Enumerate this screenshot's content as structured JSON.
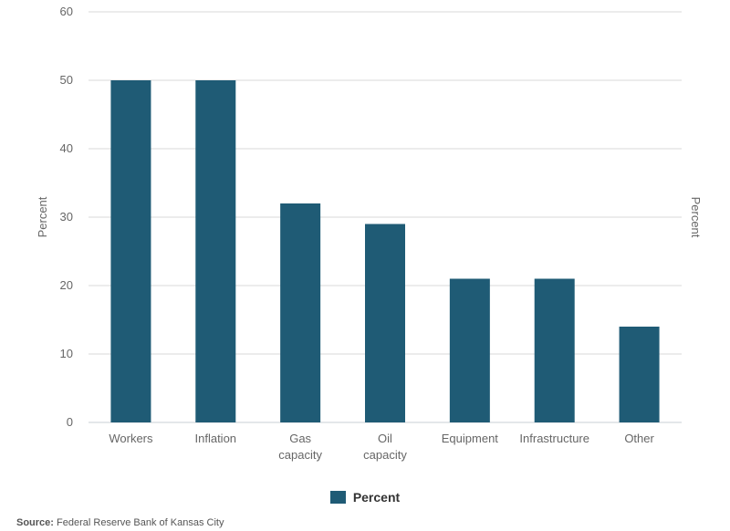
{
  "chart_data": {
    "type": "bar",
    "categories": [
      [
        "Workers"
      ],
      [
        "Inflation"
      ],
      [
        "Gas",
        "capacity"
      ],
      [
        "Oil",
        "capacity"
      ],
      [
        "Equipment"
      ],
      [
        "Infrastructure"
      ],
      [
        "Other"
      ]
    ],
    "series": [
      {
        "name": "Percent",
        "values": [
          50,
          50,
          32,
          29,
          21,
          21,
          14
        ]
      }
    ],
    "ylim": [
      0,
      60
    ],
    "yticks": [
      0,
      10,
      20,
      30,
      40,
      50,
      60
    ],
    "ylabel": "Percent",
    "ylabel_right": "Percent",
    "grid": true,
    "legend_position": "bottom-center",
    "bar_color": "#1f5b75"
  },
  "source": {
    "label": "Source:",
    "text": "Federal Reserve Bank of Kansas City"
  }
}
